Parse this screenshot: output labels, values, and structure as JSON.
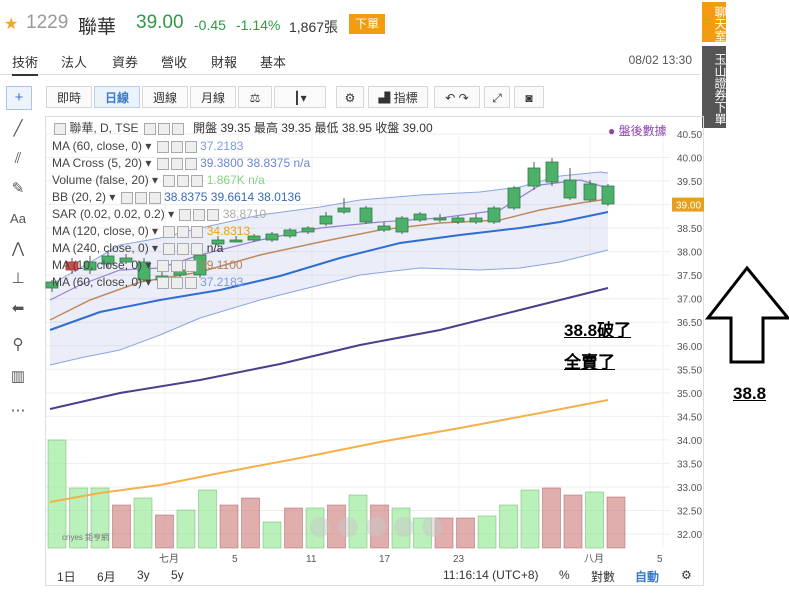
{
  "header": {
    "code": "1229",
    "name": "聯華",
    "price": "39.00",
    "change": "-0.45",
    "change_pct": "-1.14%",
    "volume": "1,867張",
    "order_label": "下單",
    "datetime": "08/02 13:30",
    "tabs": [
      "技術",
      "法人",
      "資券",
      "營收",
      "財報",
      "基本"
    ]
  },
  "side": {
    "chat": "聊天室",
    "securities": "玉山證券下單"
  },
  "toolbar": {
    "buttons": [
      "即時",
      "日線",
      "週線",
      "月線"
    ],
    "indicator_label": "指標",
    "active": "日線"
  },
  "legend": {
    "symbol": "聯華, D, TSE",
    "ohlc": "開盤 39.35 最高 39.35 最低 38.95 收盤 39.00",
    "after_hours": "盤後數據",
    "rows": [
      {
        "label": "MA (60, close, 0)",
        "values": "37.2183",
        "color": "#7b9be0"
      },
      {
        "label": "MA Cross (5, 20)",
        "values": "39.3800  38.8375  n/a",
        "color": "#6a85d8"
      },
      {
        "label": "Volume (false, 20)",
        "values": "1.867K  n/a",
        "color": "#7fd67f"
      },
      {
        "label": "BB (20, 2)",
        "values": "38.8375  39.6614  38.0136",
        "color": "#3a6ab8"
      },
      {
        "label": "SAR (0.02, 0.02, 0.2)",
        "values": "38.8710",
        "color": "#aaaaaa"
      },
      {
        "label": "MA (120, close, 0)",
        "values": "34.8313",
        "color": "#f39c12"
      },
      {
        "label": "MA (240, close, 0)",
        "values": "n/a",
        "color": "#333333"
      },
      {
        "label": "MA (10, close, 0)",
        "values": "39.1100",
        "color": "#b87f5a"
      },
      {
        "label": "MA (60, close, 0)",
        "values": "37.2183",
        "color": "#7b9be0"
      }
    ]
  },
  "price_axis": [
    "40.50",
    "40.00",
    "39.50",
    "39.00",
    "38.50",
    "38.00",
    "37.50",
    "37.00",
    "36.50",
    "36.00",
    "35.50",
    "35.00",
    "34.50",
    "34.00",
    "33.50",
    "33.00",
    "32.50",
    "32.00"
  ],
  "current_price_tag": "39.00",
  "x_axis": [
    "七月",
    "5",
    "11",
    "17",
    "23",
    "八月",
    "5"
  ],
  "annotation": {
    "line1": "38.8破了",
    "line2": "全賣了",
    "arrow_value": "38.8"
  },
  "bottom": {
    "ranges": [
      "1日",
      "6月",
      "3y",
      "5y"
    ],
    "clock": "11:16:14 (UTC+8)",
    "pct": "%",
    "log": "對數",
    "auto": "自動"
  },
  "watermark": "cnyes 鉅亨網",
  "colors": {
    "up": "#d24a4a",
    "down": "#3c9a5a",
    "accent": "#3a78c8",
    "orange": "#f39c12"
  }
}
